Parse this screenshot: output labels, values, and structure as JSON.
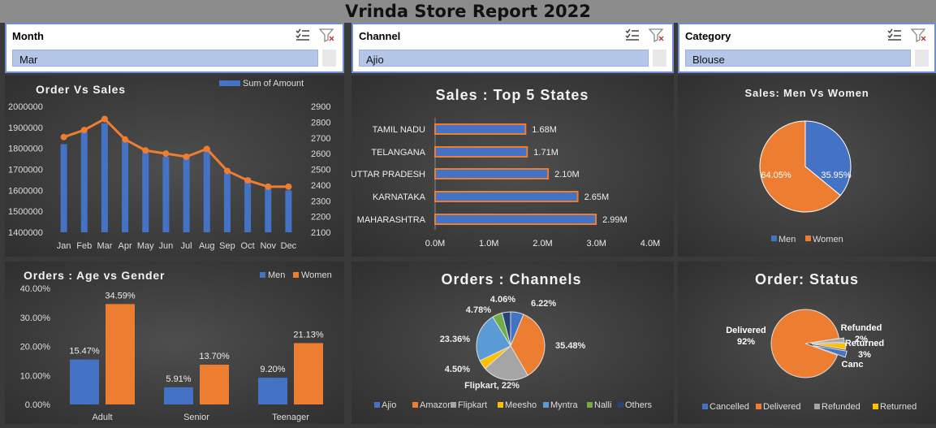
{
  "report_title": "Vrinda Store Report 2022",
  "slicers": [
    {
      "header": "Month",
      "selected": "Mar"
    },
    {
      "header": "Channel",
      "selected": "Ajio"
    },
    {
      "header": "Category",
      "selected": "Blouse"
    }
  ],
  "colors": {
    "blue": "#4472c4",
    "orange": "#ed7d31",
    "gray": "#a5a5a5",
    "yellow": "#ffc000",
    "lightblue": "#5b9bd5",
    "green": "#70ad47",
    "navy": "#264478"
  },
  "chart_data": [
    {
      "type": "bar+line",
      "title": "Order Vs Sales",
      "legend": [
        "Sum of Amount"
      ],
      "categories": [
        "Jan",
        "Feb",
        "Mar",
        "Apr",
        "May",
        "Jun",
        "Jul",
        "Aug",
        "Sep",
        "Oct",
        "Nov",
        "Dec"
      ],
      "left_axis": {
        "min": 1400000,
        "max": 2000000,
        "ticks": [
          "1400000",
          "1500000",
          "1600000",
          "1700000",
          "1800000",
          "1900000",
          "2000000"
        ]
      },
      "right_axis": {
        "min": 2100,
        "max": 2900,
        "ticks": [
          "2100",
          "2200",
          "2300",
          "2400",
          "2500",
          "2600",
          "2700",
          "2800",
          "2900"
        ]
      },
      "bars": [
        1820000,
        1880000,
        1920000,
        1830000,
        1780000,
        1760000,
        1770000,
        1800000,
        1680000,
        1660000,
        1610000,
        1600000
      ],
      "line": [
        2705,
        2750,
        2820,
        2690,
        2620,
        2600,
        2580,
        2630,
        2490,
        2430,
        2390,
        2390
      ]
    },
    {
      "type": "bar",
      "orientation": "horizontal",
      "title": "Sales : Top 5 States",
      "categories": [
        "TAMIL NADU",
        "TELANGANA",
        "UTTAR PRADESH",
        "KARNATAKA",
        "MAHARASHTRA"
      ],
      "values": [
        1.68,
        1.71,
        2.1,
        2.65,
        2.99
      ],
      "labels": [
        "1.68M",
        "1.71M",
        "2.10M",
        "2.65M",
        "2.99M"
      ],
      "xlim": [
        0,
        4
      ],
      "xticks": [
        "0.0M",
        "1.0M",
        "2.0M",
        "3.0M",
        "4.0M"
      ]
    },
    {
      "type": "pie",
      "title": "Sales: Men Vs Women",
      "slices": [
        {
          "name": "Men",
          "value": 35.95,
          "label": "35.95%"
        },
        {
          "name": "Women",
          "value": 64.05,
          "label": "64.05%"
        }
      ]
    },
    {
      "type": "bar",
      "title": "Orders : Age vs Gender",
      "categories": [
        "Adult",
        "Senior",
        "Teenager"
      ],
      "series": [
        {
          "name": "Men",
          "values": [
            15.47,
            5.91,
            9.2
          ],
          "labels": [
            "15.47%",
            "5.91%",
            "9.20%"
          ]
        },
        {
          "name": "Women",
          "values": [
            34.59,
            13.7,
            21.13
          ],
          "labels": [
            "34.59%",
            "13.70%",
            "21.13%"
          ]
        }
      ],
      "ylim": [
        0,
        40
      ],
      "yticks": [
        "0.00%",
        "10.00%",
        "20.00%",
        "30.00%",
        "40.00%"
      ]
    },
    {
      "type": "pie",
      "title": "Orders : Channels",
      "slices": [
        {
          "name": "Ajio",
          "value": 6.22,
          "label": "6.22%"
        },
        {
          "name": "Amazon",
          "value": 35.48,
          "label": "35.48%"
        },
        {
          "name": "Flipkart",
          "value": 22,
          "label": "Flipkart, 22%"
        },
        {
          "name": "Meesho",
          "value": 4.5,
          "label": "4.50%"
        },
        {
          "name": "Myntra",
          "value": 23.36,
          "label": "23.36%"
        },
        {
          "name": "Nalli",
          "value": 4.78,
          "label": "4.78%"
        },
        {
          "name": "Others",
          "value": 4.06,
          "label": "4.06%"
        }
      ]
    },
    {
      "type": "pie",
      "title": "Order: Status",
      "slices": [
        {
          "name": "Delivered",
          "value": 92,
          "label": "Delivered\n92%"
        },
        {
          "name": "Refunded",
          "value": 2,
          "label": "Refunded\n2%"
        },
        {
          "name": "Returned",
          "value": 3,
          "label": "Returned\n3%"
        },
        {
          "name": "Cancelled",
          "value": 3,
          "label": "Canc"
        }
      ],
      "legend": [
        "Cancelled",
        "Delivered",
        "Refunded",
        "Returned"
      ]
    }
  ]
}
